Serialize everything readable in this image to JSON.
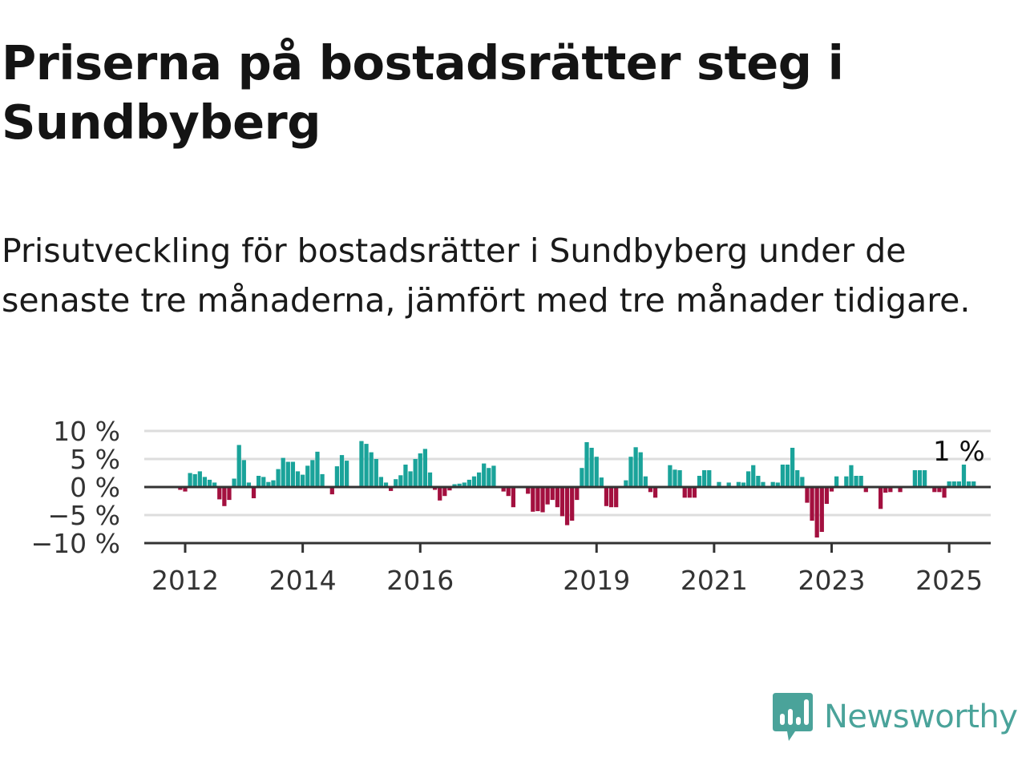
{
  "header": {
    "title": "Priserna på bostadsrätter steg i Sundbyberg",
    "subtitle": "Prisutveckling för bostadsrätter i Sundbyberg under de senaste tre månaderna, jämfört med tre månader tidigare."
  },
  "brand": {
    "name": "Newsworthy",
    "color": "#4aa39a",
    "icon": "newsworthy-bar-chart-icon"
  },
  "colors": {
    "positive": "#1aa39a",
    "negative": "#a3103f",
    "zero_line": "#333333",
    "grid": "#dddddd"
  },
  "chart_data": {
    "type": "bar",
    "title": "",
    "xlabel": "",
    "ylabel": "",
    "ylim": [
      -10,
      10
    ],
    "grid": true,
    "y_ticks": [
      {
        "value": 10,
        "label": "10 %"
      },
      {
        "value": 5,
        "label": "5 %"
      },
      {
        "value": 0,
        "label": "0 %"
      },
      {
        "value": -5,
        "label": "−5 %"
      },
      {
        "value": -10,
        "label": "−10 %"
      }
    ],
    "x_ticks": [
      {
        "date": "2012-01",
        "label": "2012"
      },
      {
        "date": "2014-01",
        "label": "2014"
      },
      {
        "date": "2016-01",
        "label": "2016"
      },
      {
        "date": "2019-01",
        "label": "2019"
      },
      {
        "date": "2021-01",
        "label": "2021"
      },
      {
        "date": "2023-01",
        "label": "2023"
      },
      {
        "date": "2025-01",
        "label": "2025"
      }
    ],
    "annotation": {
      "text": "1 %",
      "date": "2025-03",
      "value": 1
    },
    "series": [
      {
        "start": "2011-12",
        "frequency": "monthly",
        "values": [
          -0.5,
          -0.8,
          2.5,
          2.3,
          2.8,
          1.8,
          1.3,
          0.8,
          -2.2,
          -3.4,
          -2.3,
          1.5,
          7.5,
          4.8,
          0.8,
          -2.0,
          2.0,
          1.8,
          0.9,
          1.2,
          3.2,
          5.2,
          4.5,
          4.5,
          2.8,
          2.2,
          3.8,
          4.8,
          6.3,
          2.3,
          0,
          -1.3,
          3.7,
          5.7,
          4.7,
          0,
          0,
          8.2,
          7.7,
          6.2,
          5.0,
          1.8,
          0.8,
          -0.7,
          1.4,
          2.1,
          4.0,
          2.8,
          5.0,
          6.0,
          6.8,
          2.6,
          -0.5,
          -2.4,
          -1.6,
          -0.6,
          0.5,
          0.6,
          0.8,
          1.3,
          1.9,
          2.6,
          4.2,
          3.4,
          3.8,
          0,
          -0.8,
          -1.6,
          -3.6,
          0,
          0,
          -1.2,
          -4.4,
          -4.3,
          -4.5,
          -3.1,
          -2.3,
          -3.6,
          -5.2,
          -6.8,
          -6.0,
          -2.3,
          3.4,
          8.0,
          7.0,
          5.4,
          1.7,
          -3.4,
          -3.6,
          -3.6,
          0,
          1.2,
          5.4,
          7.1,
          6.2,
          1.9,
          -0.9,
          -1.9,
          0,
          0,
          3.9,
          3.1,
          3.0,
          -1.9,
          -1.9,
          -1.9,
          2.0,
          3.0,
          3.0,
          0,
          0.9,
          0,
          0.8,
          0,
          0.9,
          0.8,
          2.8,
          3.9,
          2.0,
          0.9,
          0,
          0.9,
          0.8,
          4.0,
          4.0,
          7.0,
          3.0,
          1.8,
          -2.8,
          -6.0,
          -9.0,
          -8.0,
          -3.0,
          -0.8,
          1.9,
          0,
          1.9,
          3.9,
          2.0,
          2.0,
          -0.9,
          0,
          0,
          -3.9,
          -1.0,
          -0.9,
          0,
          -0.9,
          0,
          0,
          3.0,
          3.0,
          3.0,
          0,
          -0.9,
          -0.9,
          -1.9,
          1.0,
          1.0,
          1.0,
          4.0,
          1.0,
          1.0
        ]
      }
    ]
  }
}
